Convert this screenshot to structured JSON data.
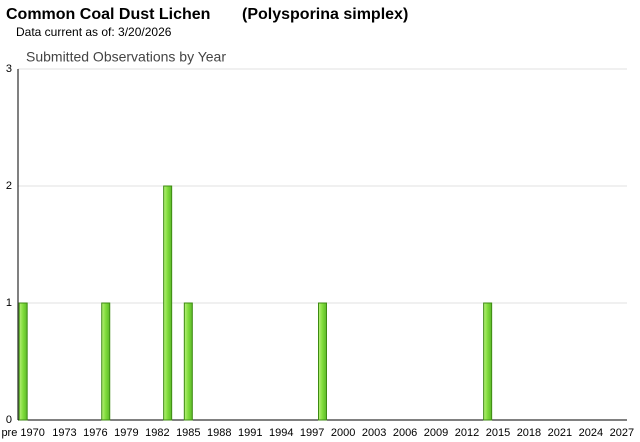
{
  "chart_data": {
    "type": "bar",
    "title": "Common Coal Dust Lichen",
    "scientific_name": "(Polysporina simplex)",
    "subtitle": "Data current as of: 3/20/2026",
    "chart_title": "Submitted Observations by Year",
    "categories": [
      "pre 1970",
      null,
      null,
      null,
      "1973",
      null,
      null,
      "1976",
      null,
      null,
      "1979",
      null,
      null,
      "1982",
      null,
      null,
      "1985",
      null,
      null,
      "1988",
      null,
      null,
      "1991",
      null,
      null,
      "1994",
      null,
      null,
      "1997",
      null,
      null,
      "2000",
      null,
      null,
      "2003",
      null,
      null,
      "2006",
      null,
      null,
      "2009",
      null,
      null,
      "2012",
      null,
      null,
      "2015",
      null,
      null,
      "2018",
      null,
      null,
      "2021",
      null,
      null,
      "2024",
      null,
      null,
      "2027"
    ],
    "values": [
      1,
      0,
      0,
      0,
      0,
      0,
      0,
      0,
      1,
      0,
      0,
      0,
      0,
      0,
      2,
      0,
      1,
      0,
      0,
      0,
      0,
      0,
      0,
      0,
      0,
      0,
      0,
      0,
      0,
      1,
      0,
      0,
      0,
      0,
      0,
      0,
      0,
      0,
      0,
      0,
      0,
      0,
      0,
      0,
      0,
      1,
      0,
      0,
      0,
      0,
      0,
      0,
      0,
      0,
      0,
      0,
      0,
      0,
      0
    ],
    "color": "#7fdc3a",
    "ylim": [
      0,
      3
    ],
    "yticks": [
      0,
      1,
      2,
      3
    ],
    "grid": true
  }
}
